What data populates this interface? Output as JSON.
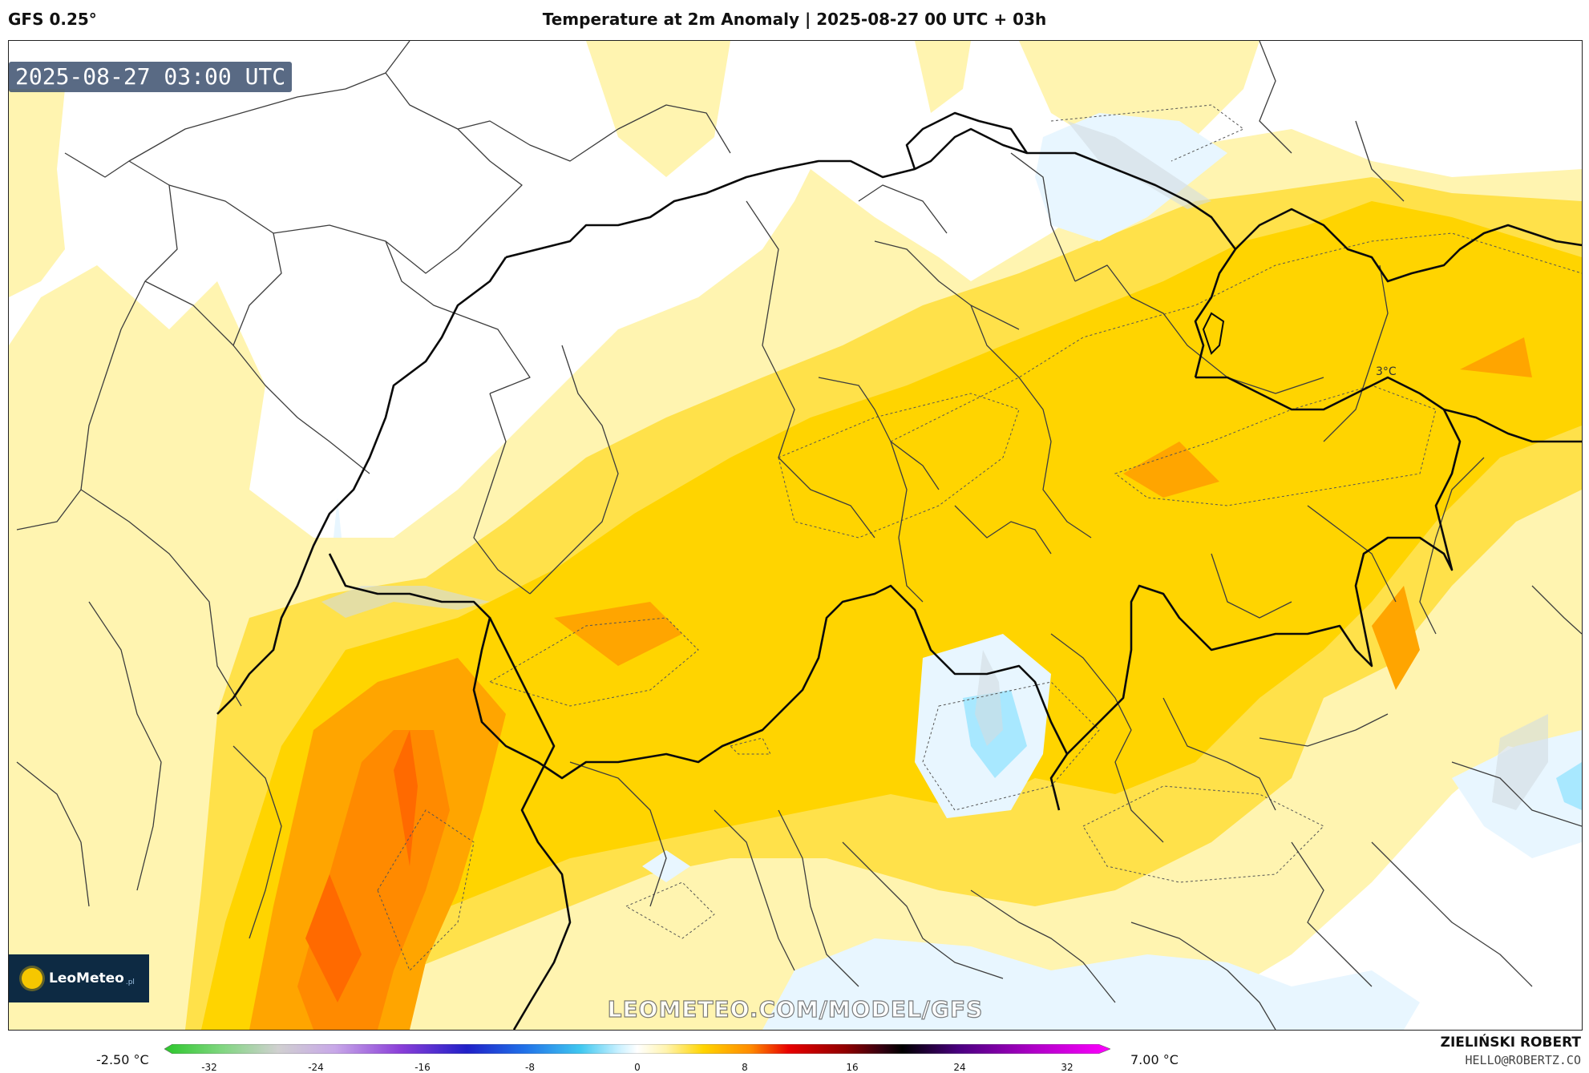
{
  "header": {
    "model": "GFS 0.25°",
    "title": "Temperature at 2m Anomaly | 2025-08-27 00 UTC + 03h"
  },
  "map": {
    "timestamp": "2025-08-27 03:00 UTC",
    "contour_label": "3°C",
    "watermark": "LEOMETEO.COM/MODEL/GFS",
    "logo": {
      "text": "LeoMeteo",
      "suffix": ".pl"
    },
    "fill_colors": {
      "white": "#ffffff",
      "pale_yellow": "#fff4b0",
      "yellow": "#ffe14a",
      "gold": "#ffd400",
      "orange": "#ffa500",
      "dark_orange": "#ff8a00",
      "deep_orange": "#ff6a00",
      "pale_blue": "#e8f6ff",
      "light_blue": "#a8e8ff"
    }
  },
  "colorbar": {
    "min_label": "-2.50 °C",
    "max_label": "7.00 °C",
    "ticks": [
      "-32",
      "-24",
      "-16",
      "-8",
      "0",
      "8",
      "16",
      "24",
      "32"
    ]
  },
  "credits": {
    "author": "ZIELIŃSKI ROBERT",
    "email": "HELLO@ROBERTZ.CO"
  }
}
